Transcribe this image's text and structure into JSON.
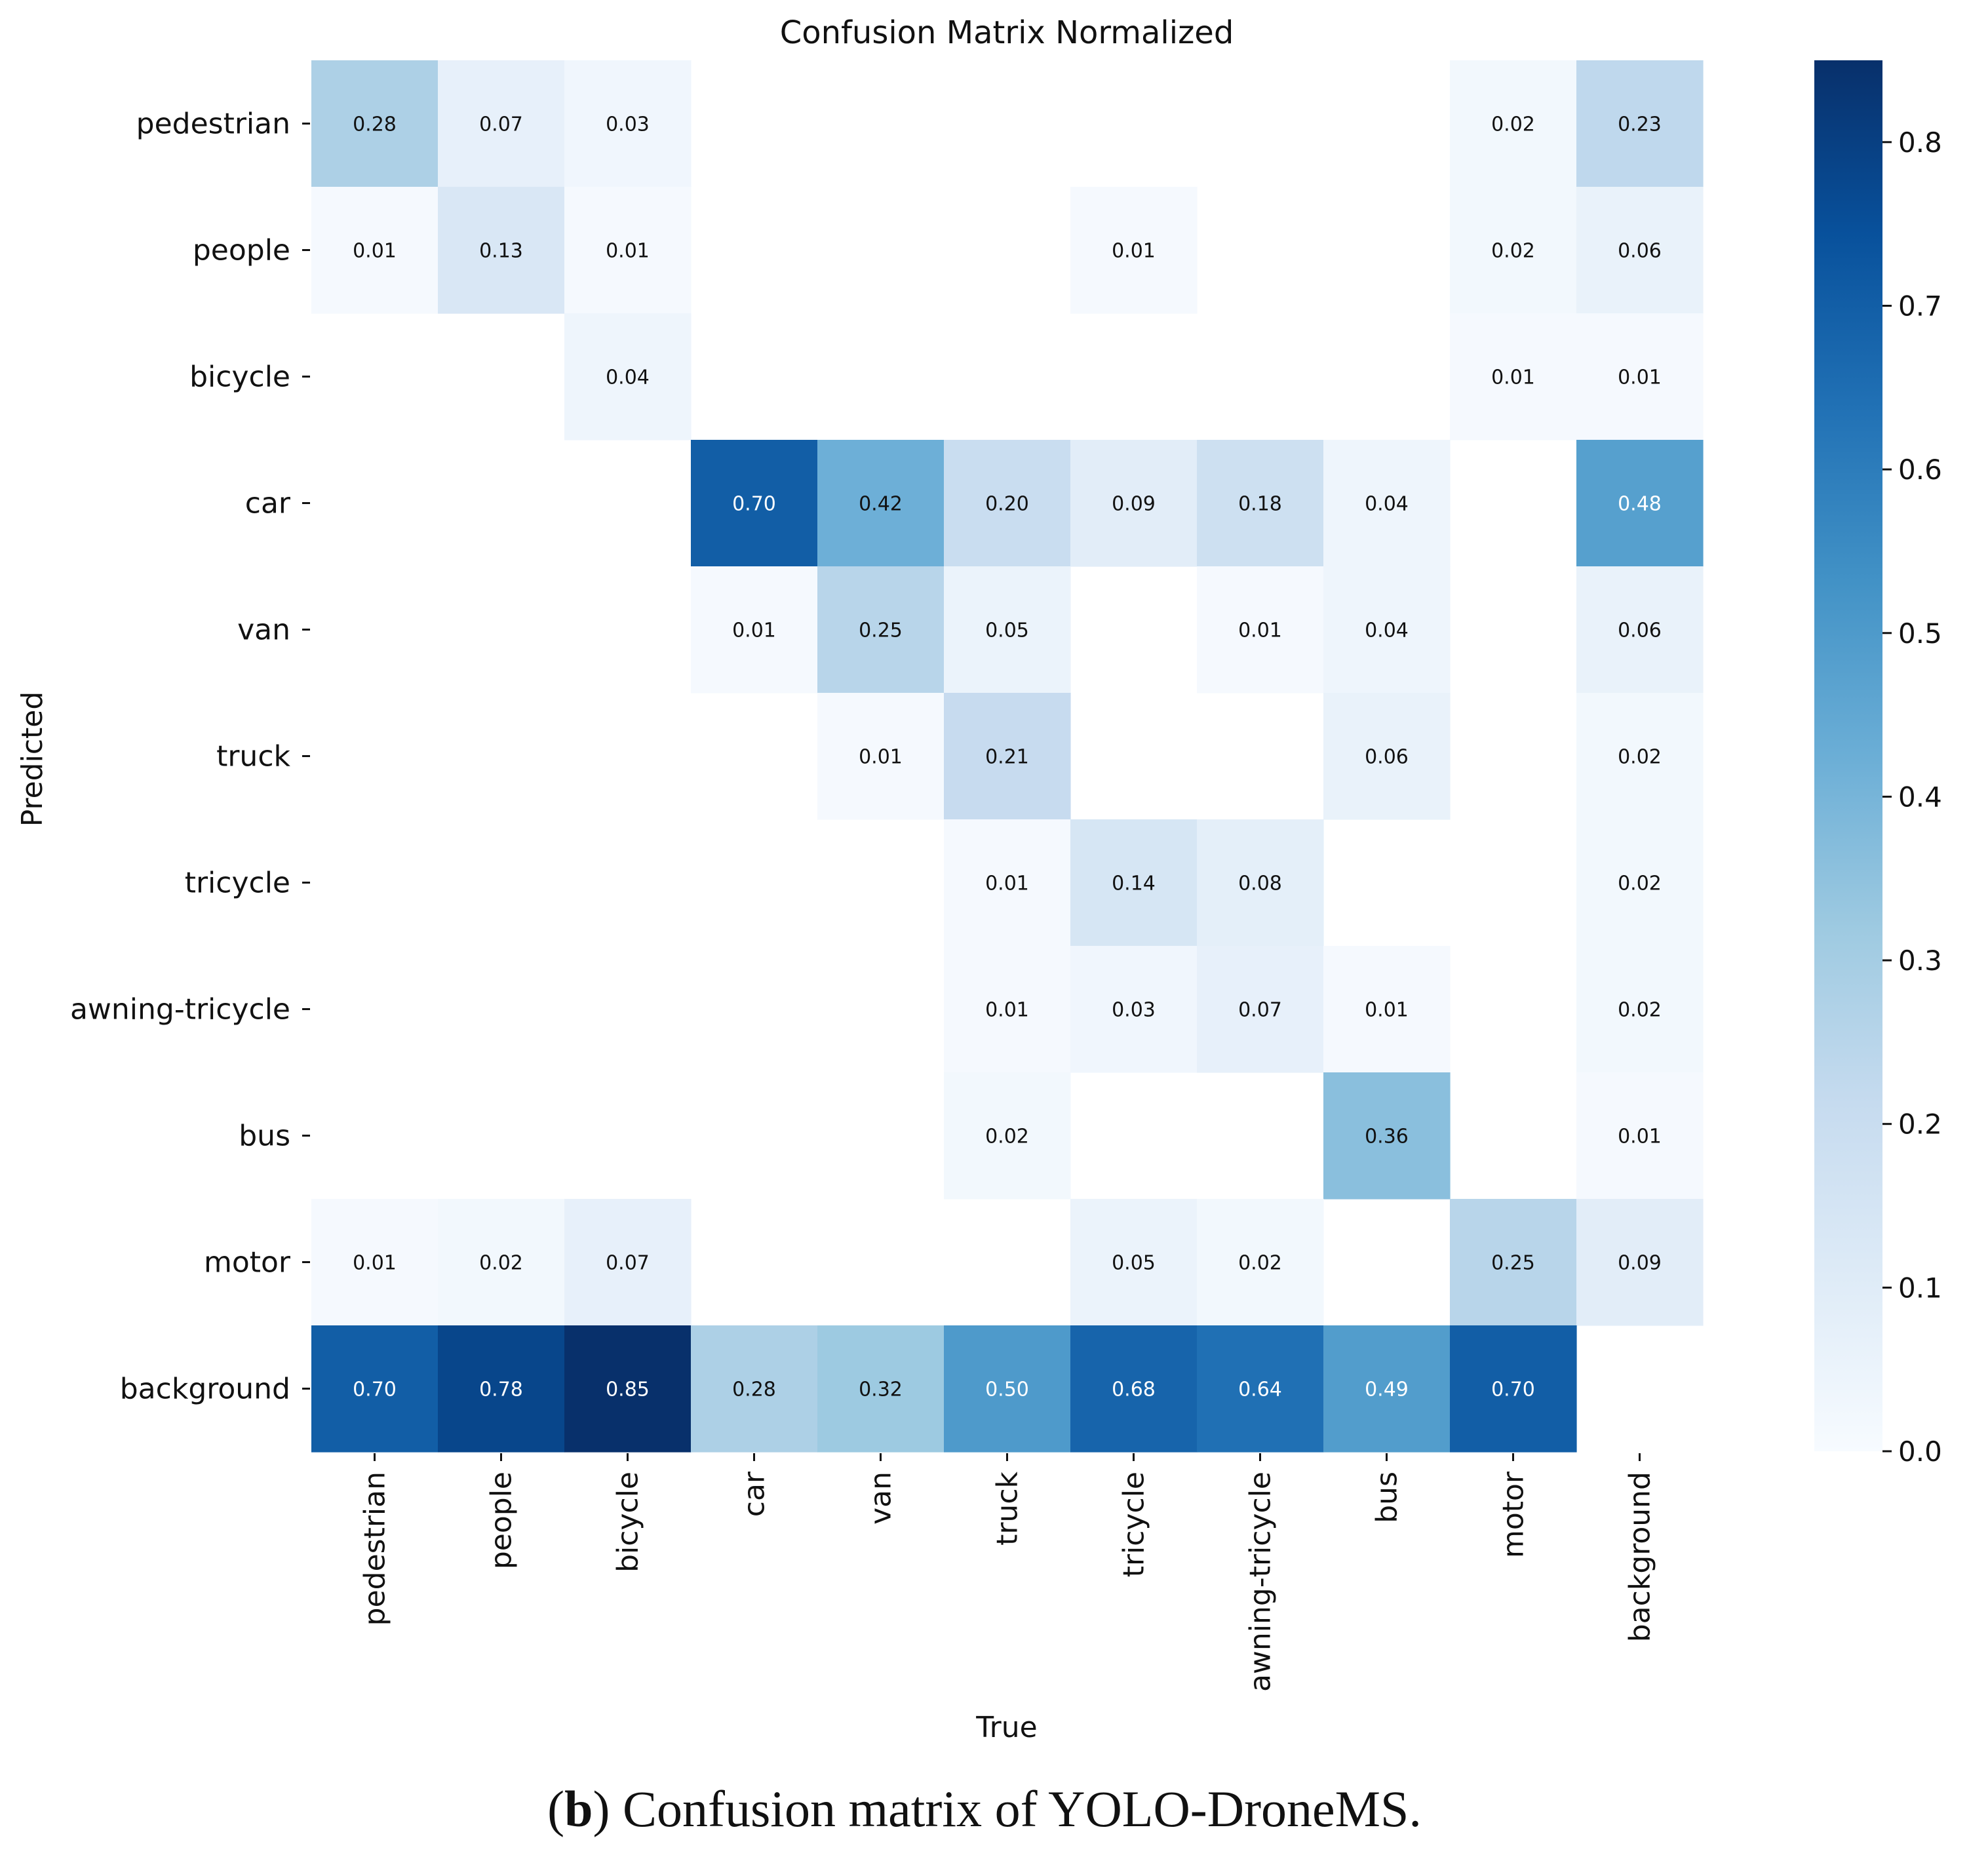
{
  "chart_data": {
    "type": "heatmap",
    "title": "Confusion Matrix Normalized",
    "xlabel": "True",
    "ylabel": "Predicted",
    "x_categories": [
      "pedestrian",
      "people",
      "bicycle",
      "car",
      "van",
      "truck",
      "tricycle",
      "awning-tricycle",
      "bus",
      "motor",
      "background"
    ],
    "y_categories": [
      "pedestrian",
      "people",
      "bicycle",
      "car",
      "van",
      "truck",
      "tricycle",
      "awning-tricycle",
      "bus",
      "motor",
      "background"
    ],
    "values": [
      [
        0.28,
        0.07,
        0.03,
        null,
        null,
        null,
        null,
        null,
        null,
        0.02,
        0.23
      ],
      [
        0.01,
        0.13,
        0.01,
        null,
        null,
        null,
        0.01,
        null,
        null,
        0.02,
        0.06
      ],
      [
        null,
        null,
        0.04,
        null,
        null,
        null,
        null,
        null,
        null,
        0.01,
        0.01
      ],
      [
        null,
        null,
        null,
        0.7,
        0.42,
        0.2,
        0.09,
        0.18,
        0.04,
        null,
        0.48
      ],
      [
        null,
        null,
        null,
        0.01,
        0.25,
        0.05,
        null,
        0.01,
        0.04,
        null,
        0.06
      ],
      [
        null,
        null,
        null,
        null,
        0.01,
        0.21,
        null,
        null,
        0.06,
        null,
        0.02
      ],
      [
        null,
        null,
        null,
        null,
        null,
        0.01,
        0.14,
        0.08,
        null,
        null,
        0.02
      ],
      [
        null,
        null,
        null,
        null,
        null,
        0.01,
        0.03,
        0.07,
        0.01,
        null,
        0.02
      ],
      [
        null,
        null,
        null,
        null,
        null,
        0.02,
        null,
        null,
        0.36,
        null,
        0.01
      ],
      [
        0.01,
        0.02,
        0.07,
        null,
        null,
        null,
        0.05,
        0.02,
        null,
        0.25,
        0.09
      ],
      [
        0.7,
        0.78,
        0.85,
        0.28,
        0.32,
        0.5,
        0.68,
        0.64,
        0.49,
        0.7,
        null
      ]
    ],
    "colormap": "Blues",
    "vmin": 0.0,
    "vmax": 0.85,
    "colorbar_ticks": [
      "0.0",
      "0.1",
      "0.2",
      "0.3",
      "0.4",
      "0.5",
      "0.6",
      "0.7",
      "0.8"
    ]
  },
  "caption": {
    "label": "b",
    "text": "Confusion matrix of YOLO-DroneMS."
  }
}
